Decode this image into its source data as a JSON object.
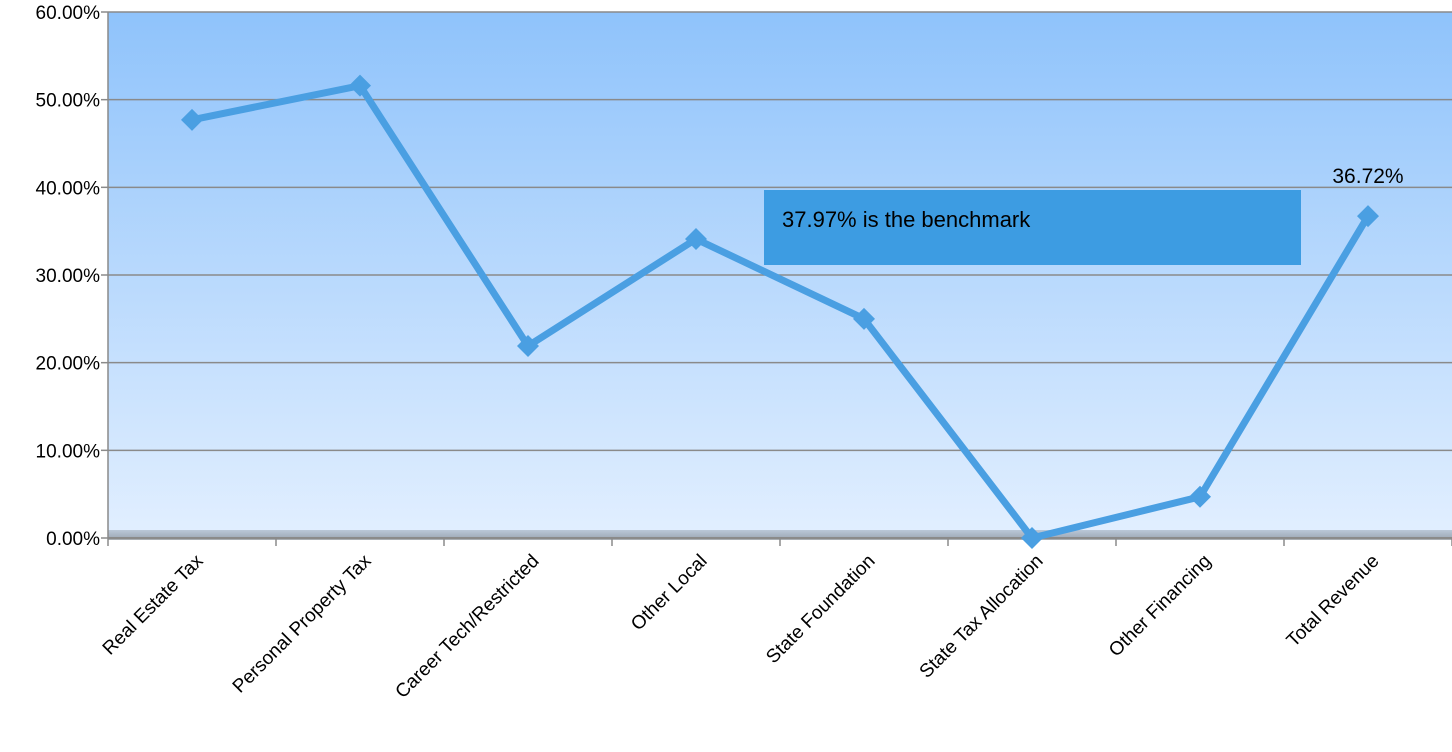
{
  "chart_data": {
    "type": "line",
    "categories": [
      "Real Estate Tax",
      "Personal Property Tax",
      "Career Tech/Restricted",
      "Other Local",
      "State Foundation",
      "State Tax Allocation",
      "Other Financing",
      "Total Revenue"
    ],
    "series": [
      {
        "values": [
          47.7,
          51.6,
          21.9,
          34.1,
          25.0,
          0.0,
          4.7,
          36.72
        ]
      }
    ],
    "ylim": [
      0,
      60
    ],
    "yticks": [
      0,
      10,
      20,
      30,
      40,
      50,
      60
    ],
    "ytick_labels": [
      "0.00%",
      "10.00%",
      "20.00%",
      "30.00%",
      "40.00%",
      "50.00%",
      "60.00%"
    ],
    "data_labels": [
      {
        "category_index": 7,
        "text": "36.72%"
      }
    ],
    "annotation": {
      "text": "37.97% is the benchmark"
    },
    "grid": true,
    "legend": "none",
    "colors": {
      "line": "#4a9fe2",
      "marker": "#4a9fe2",
      "plot_bg_top": "#8fc3fb",
      "plot_bg_bottom": "#e2efff",
      "annotation_bg": "#3d9ce2",
      "gridline": "#8a8a8a",
      "axis": "#8a8a8a"
    }
  }
}
